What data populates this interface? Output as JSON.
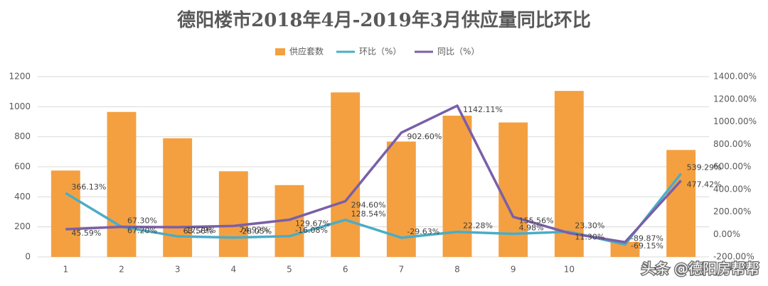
{
  "chart_data": {
    "type": "bar-line",
    "title": "德阳楼市2018年4月-2019年3月供应量同比环比",
    "watermark": "头条 @德阳房帮帮",
    "categories": [
      "1",
      "2",
      "3",
      "4",
      "5",
      "6",
      "7",
      "8",
      "9",
      "10",
      null,
      null
    ],
    "series": [
      {
        "name": "供应套数",
        "type": "bar",
        "color": "#f4a040",
        "values": [
          575,
          965,
          790,
          570,
          478,
          1095,
          768,
          940,
          895,
          1105,
          100,
          712
        ]
      },
      {
        "name": "环比（%）",
        "type": "line",
        "axis": "y2",
        "color": "#4bacc6",
        "values": [
          366.13,
          67.3,
          -17.79,
          -28.05,
          -16.08,
          128.54,
          -29.63,
          22.28,
          4.98,
          23.3,
          -89.87,
          539.29
        ],
        "value_labels": [
          "366.13%",
          "67.30%",
          "-17.79%",
          "-28.05%",
          "-16.08%",
          "128.54%",
          "-29.63%",
          "22.28%",
          "4.98%",
          "23.30%",
          "-89.87%",
          "539.29%"
        ]
      },
      {
        "name": "同比（%）",
        "type": "line",
        "axis": "y2",
        "color": "#7a5fa8",
        "values": [
          45.59,
          67.2,
          63.58,
          74.92,
          129.67,
          294.6,
          902.6,
          1142.11,
          155.56,
          11.3,
          -69.15,
          477.42
        ],
        "value_labels": [
          "45.59%",
          "67.20%",
          "63.58%",
          "74.92%",
          "129.67%",
          "294.60%",
          "902.60%",
          "1142.11%",
          "155.56%",
          "11.30%",
          "-69.15%",
          "477.42%"
        ]
      }
    ],
    "ylim": [
      0,
      1200
    ],
    "yticks": [
      0,
      200,
      400,
      600,
      800,
      1000,
      1200
    ],
    "y2lim": [
      -200,
      1400
    ],
    "y2ticks": [
      {
        "value": -200,
        "label": "-200.00%"
      },
      {
        "value": 0,
        "label": "0.00%"
      },
      {
        "value": 200,
        "label": "200.00%"
      },
      {
        "value": 400,
        "label": "400.00%"
      },
      {
        "value": 600,
        "label": "600.00%"
      },
      {
        "value": 800,
        "label": "800.00%"
      },
      {
        "value": 1000,
        "label": "1000.00%"
      },
      {
        "value": 1200,
        "label": "1200.00%"
      },
      {
        "value": 1400,
        "label": "1400.00%"
      }
    ],
    "grid": true,
    "legend": "top"
  }
}
